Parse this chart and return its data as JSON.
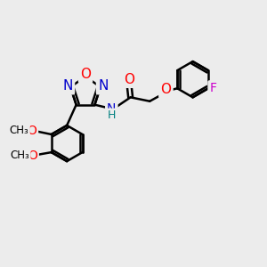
{
  "bg_color": "#ececec",
  "bond_color": "#000000",
  "bond_width": 1.8,
  "font_size": 10,
  "figsize": [
    3.0,
    3.0
  ],
  "dpi": 100,
  "atom_colors": {
    "O": "#ff0000",
    "N": "#0000cc",
    "F": "#cc00cc",
    "C": "#000000",
    "H": "#008080"
  },
  "xlim": [
    0,
    12
  ],
  "ylim": [
    0,
    12
  ]
}
